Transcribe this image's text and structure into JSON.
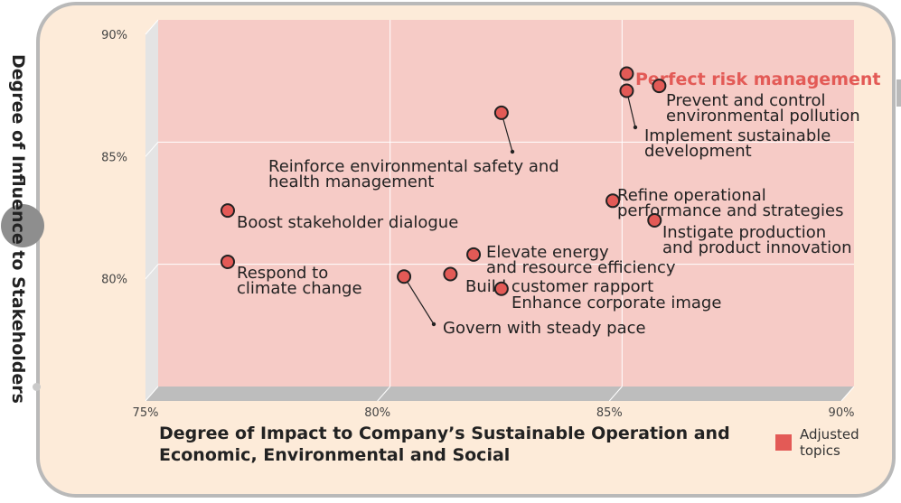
{
  "colors": {
    "plot_bg": "#f6cbc6",
    "side_wall": "#e4e4e4",
    "floor": "#bdbdbd",
    "point_fill": "#e35a56",
    "point_stroke": "#222222",
    "highlight_text": "#e35a56",
    "legend_swatch": "#e35a56",
    "card_bg": "#fdebd9",
    "card_border": "#b9b9b9"
  },
  "chart_data": {
    "type": "scatter",
    "title": "",
    "xlabel": "Degree of Impact to Company’s Sustainable Operation and Economic, Environmental and Social",
    "ylabel": "Degree of Influence to Stakeholders",
    "xlim": [
      75,
      90
    ],
    "ylim": [
      75,
      90
    ],
    "xticks": [
      "75%",
      "80%",
      "85%",
      "90%"
    ],
    "yticks": [
      "80%",
      "85%",
      "90%"
    ],
    "grid": true,
    "legend": {
      "placement": "bottom-right",
      "items": [
        {
          "label": "Adjusted\ntopics",
          "color": "#e35a56"
        }
      ]
    },
    "series": [
      {
        "points": [
          {
            "x": 85.1,
            "y": 87.8,
            "label": "Perfect risk management",
            "highlight": true
          },
          {
            "x": 85.8,
            "y": 87.3,
            "label": "Prevent and control\nenvironmental pollution"
          },
          {
            "x": 85.1,
            "y": 87.1,
            "label": "Implement sustainable\ndevelopment"
          },
          {
            "x": 82.4,
            "y": 86.2,
            "label": "Reinforce environmental safety and\nhealth management"
          },
          {
            "x": 84.8,
            "y": 82.6,
            "label": "Refine operational\nperformance and strategies"
          },
          {
            "x": 85.7,
            "y": 81.8,
            "label": "Instigate production\nand product innovation"
          },
          {
            "x": 76.5,
            "y": 82.2,
            "label": "Boost stakeholder dialogue"
          },
          {
            "x": 76.5,
            "y": 80.1,
            "label": "Respond to\nclimate change"
          },
          {
            "x": 81.8,
            "y": 80.4,
            "label": "Elevate energy\nand resource efficiency"
          },
          {
            "x": 81.3,
            "y": 79.6,
            "label": "Build customer rapport"
          },
          {
            "x": 82.4,
            "y": 79.0,
            "label": "Enhance corporate image"
          },
          {
            "x": 80.3,
            "y": 79.5,
            "label": "Govern with steady pace"
          }
        ]
      }
    ]
  }
}
